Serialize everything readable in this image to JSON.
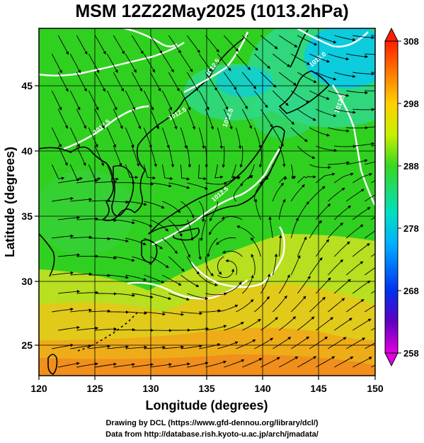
{
  "title": "MSM 12Z22May2025 (1013.2hPa)",
  "x_axis": {
    "label": "Longitude (degrees)",
    "ticks": [
      "120",
      "125",
      "130",
      "135",
      "140",
      "145",
      "150"
    ]
  },
  "y_axis": {
    "label": "Latitude  (degrees)",
    "ticks": [
      "25",
      "30",
      "35",
      "40",
      "45"
    ]
  },
  "colorbar": {
    "ticks": [
      "308",
      "298",
      "288",
      "278",
      "268",
      "258"
    ]
  },
  "contour_labels": [
    "1012.5",
    "1012.5",
    "1012.5",
    "1016.0",
    "1012.5",
    "1012.5",
    "1012.5"
  ],
  "credits": {
    "line1": "Drawing by DCL (https://www.gfd-dennou.org/library/dcl/)",
    "line2": "Data from http://database.rish.kyoto-u.ac.jp/arch/jmadata/"
  },
  "colors": {
    "cold": "#00c8ff",
    "cool": "#30d88c",
    "mild": "#30d020",
    "warm": "#d8e018",
    "hot": "#f0a818",
    "land": "#000000",
    "isobar": "#ffffff"
  }
}
